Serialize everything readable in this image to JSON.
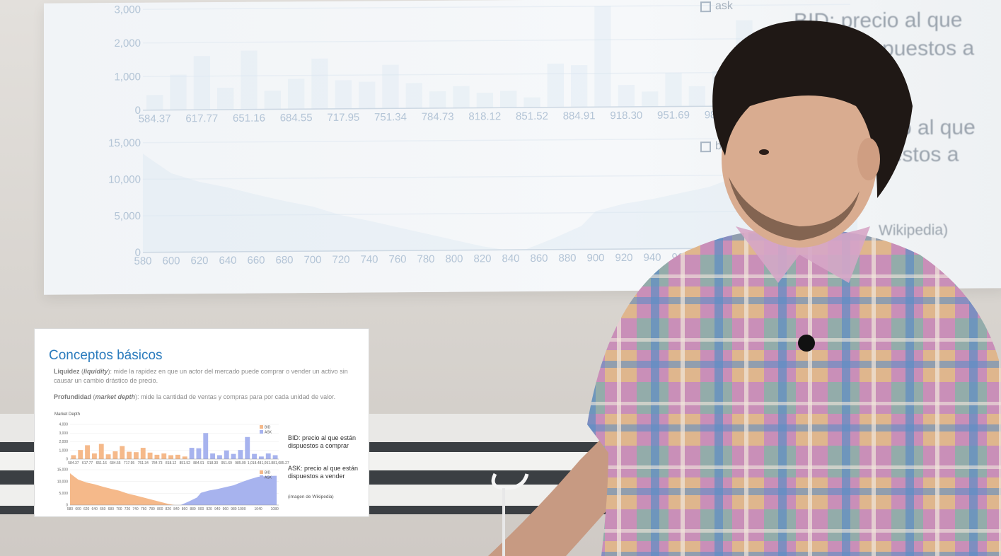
{
  "slide": {
    "title": "Conceptos básicos",
    "liquidity": {
      "term": "Liquidez",
      "term_en": "liquidity",
      "text": ": mide la rapidez en que un actor del mercado puede comprar o vender un activo sin causar un cambio drástico de precio."
    },
    "depth": {
      "term": "Profundidad",
      "term_en": "market depth",
      "text": ": mide la cantidad de ventas y compras para por cada unidad de valor."
    },
    "chart_title": "Market Depth",
    "bid_note": "BID: precio al que están dispuestos a comprar",
    "ask_note": "ASK: precio al que están dispuestos a vender",
    "credit": "(imagen de Wikipedia)"
  },
  "projection": {
    "text_line1": "BID: precio al que",
    "text_line2": "spuestos a",
    "text_line3": "o al que",
    "text_line4": "uestos a",
    "text_credit": "Wikipedia)",
    "legend_ask": "ask",
    "legend_bid": "bi"
  },
  "chart_data": [
    {
      "type": "bar",
      "title": "",
      "categories": [
        "584.37",
        "601.07",
        "617.77",
        "634.47",
        "651.16",
        "667.86",
        "684.55",
        "701.25",
        "717.95",
        "734.65",
        "751.34",
        "768.04",
        "784.73",
        "801.43",
        "818.12",
        "834.82",
        "851.52",
        "868.22",
        "884.91",
        "901.61",
        "918.30",
        "935.00",
        "951.69",
        "968.39",
        "985.09",
        "1001.79",
        "1018.48",
        "1035.18",
        "1051.88",
        "1068.57"
      ],
      "tick_labels": [
        "584.37",
        "617.77",
        "651.16",
        "684.55",
        "717.95",
        "751.34",
        "784.73",
        "818.12",
        "851.52",
        "884.91",
        "918.30",
        "951.69",
        "985.09",
        "1,018.48",
        "1,051.88",
        "1,085.27"
      ],
      "series": [
        {
          "name": "BID",
          "color": "#f5b98a",
          "values": [
            450,
            1050,
            1600,
            650,
            1750,
            550,
            900,
            1500,
            850,
            800,
            1300,
            750,
            500,
            650,
            450,
            500,
            300,
            0,
            0,
            0,
            0,
            0,
            0,
            0,
            0,
            0,
            0,
            0,
            0,
            0
          ]
        },
        {
          "name": "ASK",
          "color": "#a7b3ee",
          "values": [
            0,
            0,
            0,
            0,
            0,
            0,
            0,
            0,
            0,
            0,
            0,
            0,
            0,
            0,
            0,
            0,
            0,
            1300,
            1250,
            3000,
            650,
            450,
            1000,
            600,
            1050,
            2550,
            600,
            300,
            650,
            450
          ]
        }
      ],
      "yticks": [
        "0",
        "1,000",
        "2,000",
        "3,000",
        "4,000"
      ],
      "ylim": [
        0,
        4000
      ],
      "legend": [
        "BID",
        "ASK"
      ],
      "legend_position": "top-right"
    },
    {
      "type": "area",
      "title": "",
      "x_ticks": [
        "580",
        "600",
        "620",
        "640",
        "660",
        "680",
        "700",
        "720",
        "740",
        "760",
        "780",
        "800",
        "820",
        "840",
        "860",
        "880",
        "900",
        "920",
        "940",
        "960",
        "980",
        "1000",
        "1040",
        "1080"
      ],
      "yticks": [
        "0",
        "5,000",
        "10,000",
        "15,000"
      ],
      "ylim": [
        0,
        15000
      ],
      "xlim": [
        580,
        1090
      ],
      "series": [
        {
          "name": "BID",
          "color": "#f5b98a",
          "x": [
            580,
            585,
            600,
            620,
            640,
            660,
            680,
            700,
            720,
            740,
            760,
            780,
            800,
            820,
            836
          ],
          "y": [
            13500,
            12800,
            10800,
            9600,
            8800,
            7800,
            6900,
            6100,
            4900,
            4100,
            3200,
            2300,
            1400,
            500,
            0
          ]
        },
        {
          "name": "ASK",
          "color": "#a7b3ee",
          "x": [
            850,
            870,
            890,
            900,
            920,
            940,
            960,
            980,
            1000,
            1020,
            1040,
            1060,
            1080,
            1085
          ],
          "y": [
            0,
            1500,
            3200,
            5200,
            6200,
            6800,
            7600,
            8400,
            9800,
            11000,
            12000,
            12300,
            12400,
            12400
          ]
        }
      ],
      "legend": [
        "BID",
        "ASK"
      ],
      "legend_position": "top-right"
    }
  ]
}
